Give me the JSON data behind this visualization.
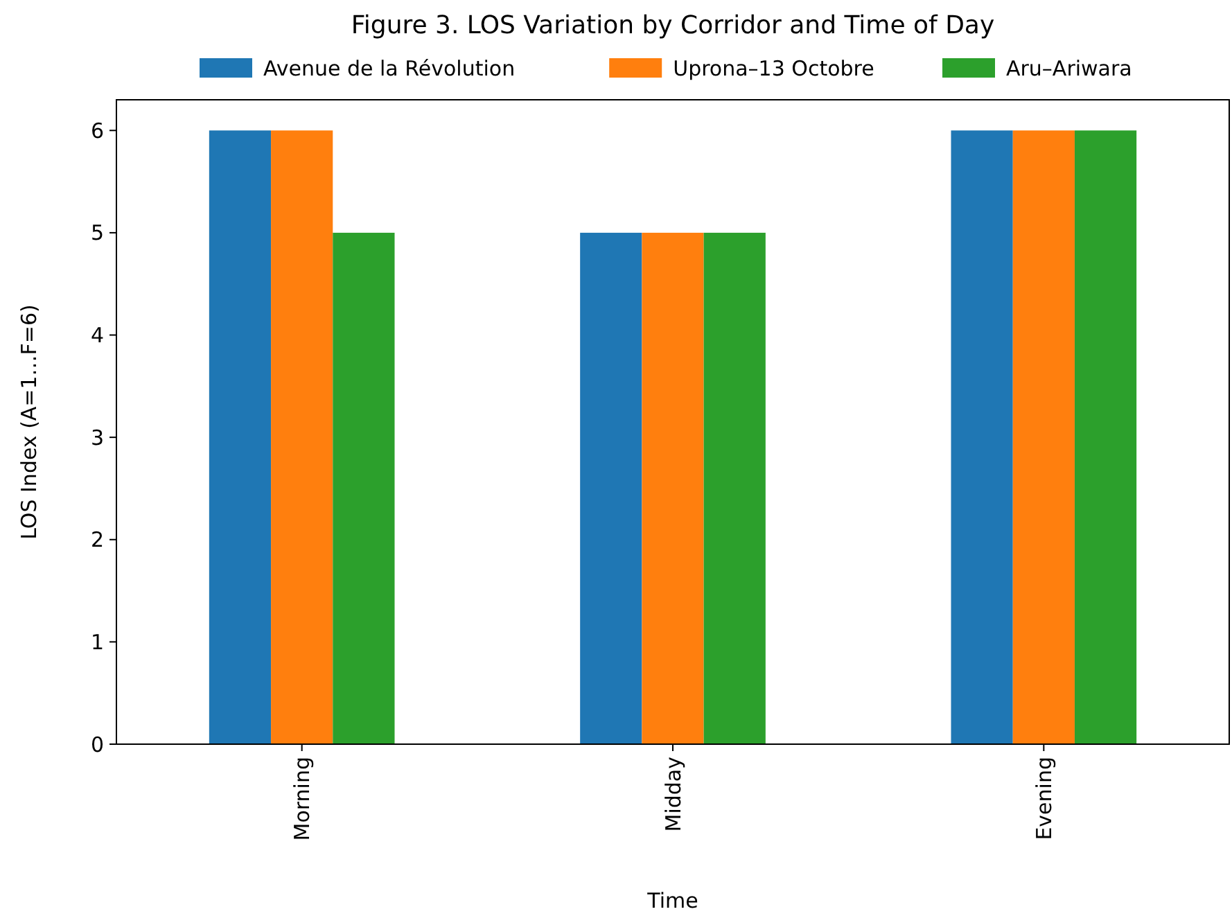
{
  "chart_data": {
    "type": "bar",
    "title": "Figure 3. LOS Variation by Corridor and Time of Day",
    "xlabel": "Time",
    "ylabel": "LOS Index (A=1…F=6)",
    "categories": [
      "Morning",
      "Midday",
      "Evening"
    ],
    "series": [
      {
        "name": "Avenue de la Révolution",
        "color": "#1f77b4",
        "values": [
          6,
          5,
          6
        ]
      },
      {
        "name": "Uprona–13 Octobre",
        "color": "#ff7f0e",
        "values": [
          6,
          5,
          6
        ]
      },
      {
        "name": "Aru–Ariwara",
        "color": "#2ca02c",
        "values": [
          5,
          5,
          6
        ]
      }
    ],
    "ylim": [
      0,
      6.3
    ],
    "yticks": [
      0,
      1,
      2,
      3,
      4,
      5,
      6
    ],
    "legend": "top"
  }
}
